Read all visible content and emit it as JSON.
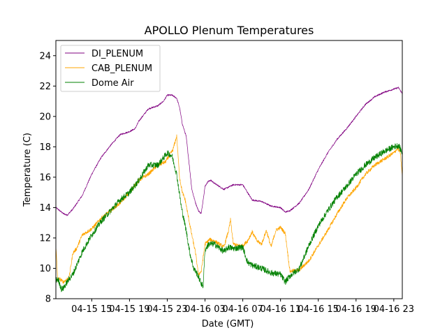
{
  "chart_data": {
    "type": "line",
    "title": "APOLLO Plenum Temperatures",
    "xlabel": "Date (GMT)",
    "ylabel": "Temperature (C)",
    "ylim": [
      8,
      25
    ],
    "xlim": [
      11.2,
      47.9
    ],
    "yticks": [
      8,
      10,
      12,
      14,
      16,
      18,
      20,
      22,
      24
    ],
    "xticks": [
      {
        "x": 15,
        "label": "04-15 15"
      },
      {
        "x": 19,
        "label": "04-15 19"
      },
      {
        "x": 23,
        "label": "04-15 23"
      },
      {
        "x": 27,
        "label": "04-16 03"
      },
      {
        "x": 31,
        "label": "04-16 07"
      },
      {
        "x": 35,
        "label": "04-16 11"
      },
      {
        "x": 39,
        "label": "04-16 15"
      },
      {
        "x": 43,
        "label": "04-16 19"
      },
      {
        "x": 47,
        "label": "04-16 23"
      }
    ],
    "legend_position": "top-left",
    "series": [
      {
        "name": "DI_PLENUM",
        "color": "#800080",
        "noise": 0.05,
        "x": [
          11.2,
          11.6,
          12.0,
          12.4,
          13.0,
          14.0,
          15.0,
          16.0,
          17.0,
          18.0,
          19.0,
          19.6,
          20.0,
          21.0,
          22.0,
          22.6,
          23.0,
          23.5,
          24.0,
          24.3,
          24.6,
          24.8,
          25.0,
          25.3,
          25.6,
          26.0,
          26.3,
          26.6,
          27.0,
          27.3,
          27.6,
          28.0,
          29.0,
          30.0,
          31.0,
          31.4,
          32.0,
          33.0,
          34.0,
          35.0,
          35.5,
          36.0,
          37.0,
          38.0,
          39.0,
          40.0,
          41.0,
          42.0,
          43.0,
          44.0,
          45.0,
          46.0,
          47.0,
          47.5,
          47.9
        ],
        "y": [
          14.0,
          13.8,
          13.6,
          13.5,
          13.9,
          14.8,
          16.2,
          17.3,
          18.1,
          18.8,
          19.0,
          19.2,
          19.7,
          20.5,
          20.7,
          21.0,
          21.4,
          21.4,
          21.2,
          20.6,
          19.5,
          19.1,
          18.7,
          17.0,
          15.2,
          14.3,
          13.8,
          13.6,
          15.4,
          15.7,
          15.8,
          15.6,
          15.2,
          15.5,
          15.5,
          15.1,
          14.5,
          14.4,
          14.1,
          14.0,
          13.7,
          13.8,
          14.3,
          15.2,
          16.5,
          17.6,
          18.5,
          19.2,
          20.0,
          20.8,
          21.3,
          21.6,
          21.8,
          21.9,
          21.5
        ]
      },
      {
        "name": "CAB_PLENUM",
        "color": "#FFA500",
        "noise": 0.12,
        "x": [
          11.2,
          11.4,
          11.6,
          12.0,
          12.6,
          13.0,
          13.4,
          14.0,
          15.0,
          16.0,
          17.0,
          18.0,
          19.0,
          20.0,
          21.0,
          22.0,
          22.8,
          23.2,
          23.6,
          24.0,
          24.3,
          24.6,
          24.9,
          25.2,
          25.6,
          26.0,
          26.3,
          26.6,
          27.0,
          27.5,
          28.0,
          29.0,
          29.5,
          29.7,
          30.0,
          30.5,
          31.0,
          31.5,
          32.0,
          32.5,
          33.0,
          33.5,
          34.0,
          34.5,
          35.0,
          35.5,
          36.0,
          37.0,
          38.0,
          39.0,
          40.0,
          41.0,
          42.0,
          43.0,
          44.0,
          45.0,
          46.0,
          47.0,
          47.4,
          47.7,
          47.9
        ],
        "y": [
          11.5,
          9.2,
          9.3,
          9.1,
          9.4,
          11.0,
          11.3,
          12.2,
          12.6,
          13.3,
          13.8,
          14.3,
          15.0,
          15.8,
          16.2,
          16.8,
          17.0,
          17.4,
          17.8,
          18.7,
          16.0,
          15.0,
          14.5,
          13.5,
          12.2,
          11.0,
          9.6,
          9.8,
          11.6,
          11.9,
          11.8,
          11.4,
          12.5,
          13.2,
          11.6,
          11.5,
          11.5,
          11.8,
          12.4,
          11.8,
          11.6,
          12.5,
          11.4,
          12.5,
          12.7,
          12.3,
          9.8,
          9.9,
          10.5,
          11.5,
          12.5,
          13.6,
          14.6,
          15.3,
          16.2,
          16.8,
          17.2,
          17.6,
          17.9,
          17.6,
          16.0
        ]
      },
      {
        "name": "Dome Air",
        "color": "#008000",
        "noise": 0.2,
        "x": [
          11.2,
          11.4,
          11.6,
          11.8,
          12.0,
          12.6,
          13.0,
          14.0,
          15.0,
          16.0,
          17.0,
          18.0,
          19.0,
          20.0,
          21.0,
          22.0,
          22.5,
          23.0,
          23.5,
          24.0,
          24.5,
          25.0,
          25.4,
          25.8,
          26.2,
          26.6,
          26.8,
          27.0,
          27.4,
          28.0,
          29.0,
          29.5,
          30.0,
          31.0,
          31.5,
          32.0,
          33.0,
          34.0,
          35.0,
          35.5,
          36.0,
          37.0,
          38.0,
          39.0,
          40.0,
          41.0,
          42.0,
          43.0,
          44.0,
          45.0,
          46.0,
          47.0,
          47.5,
          47.9
        ],
        "y": [
          9.2,
          9.3,
          9.0,
          8.6,
          8.7,
          9.3,
          9.6,
          11.1,
          12.2,
          13.1,
          13.8,
          14.5,
          15.0,
          15.8,
          16.8,
          16.8,
          17.2,
          17.6,
          17.4,
          16.2,
          14.0,
          12.5,
          11.0,
          10.0,
          9.6,
          9.0,
          8.8,
          11.2,
          11.6,
          11.6,
          11.1,
          11.4,
          11.3,
          11.4,
          10.4,
          10.2,
          10.0,
          9.7,
          9.6,
          9.1,
          9.5,
          10.0,
          11.5,
          12.8,
          13.8,
          14.7,
          15.4,
          16.2,
          16.8,
          17.3,
          17.7,
          18.0,
          18.1,
          17.6
        ]
      }
    ]
  }
}
